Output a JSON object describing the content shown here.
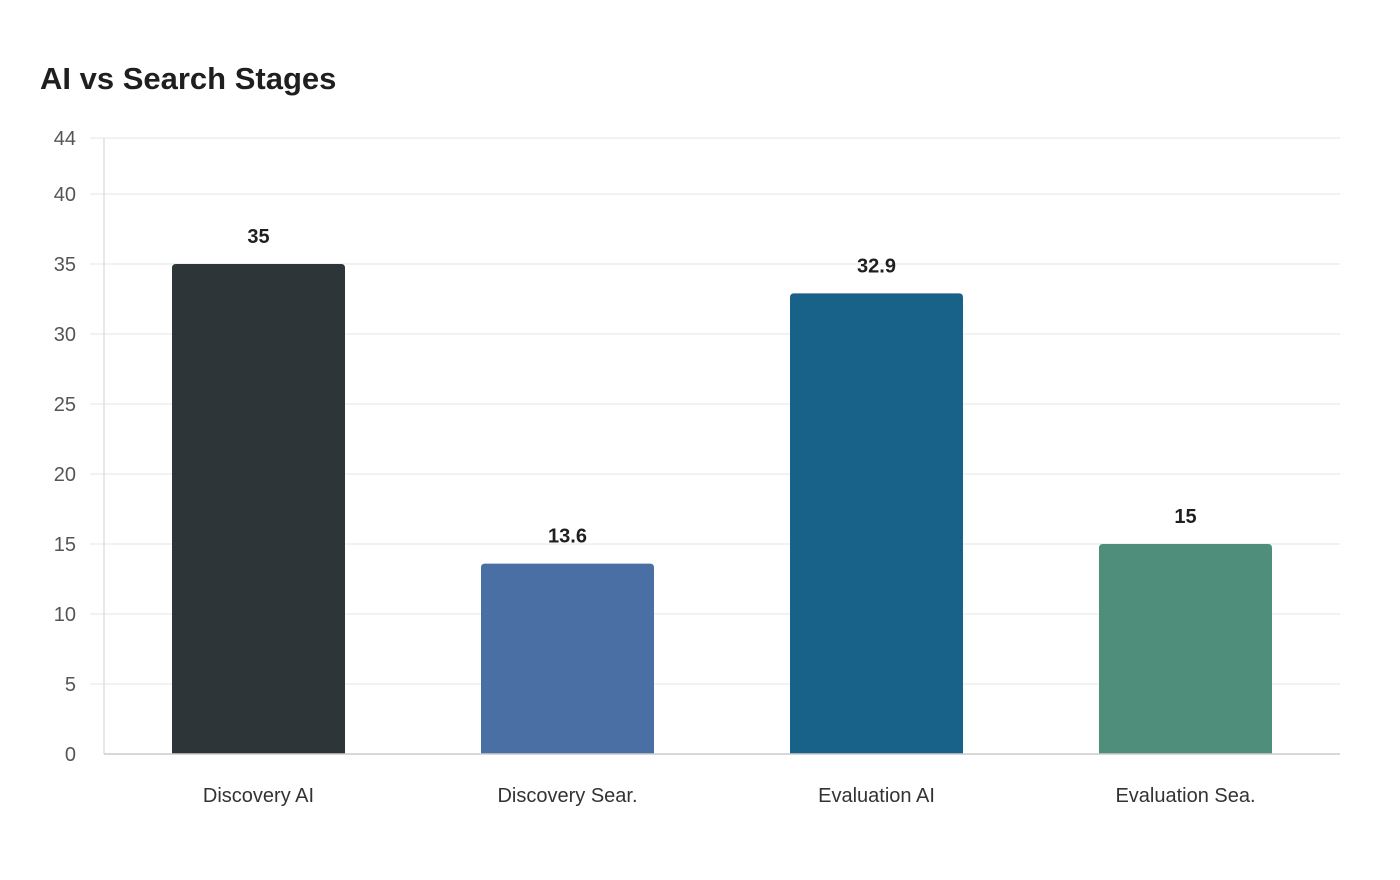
{
  "chart_data": {
    "type": "bar",
    "title": "AI vs Search Stages",
    "categories": [
      "Discovery AI",
      "Discovery Sear.",
      "Evaluation AI",
      "Evaluation Sea."
    ],
    "values": [
      35,
      13.6,
      32.9,
      15
    ],
    "data_labels": [
      "35",
      "13.6",
      "32.9",
      "15"
    ],
    "colors": [
      "#2d3538",
      "#4a6fa5",
      "#186188",
      "#4e8e7b"
    ],
    "ylim": [
      0,
      44
    ],
    "yticks": [
      0,
      5,
      10,
      15,
      20,
      25,
      30,
      35,
      40,
      44
    ],
    "xlabel": "",
    "ylabel": "",
    "grid": true,
    "legend": "none"
  }
}
